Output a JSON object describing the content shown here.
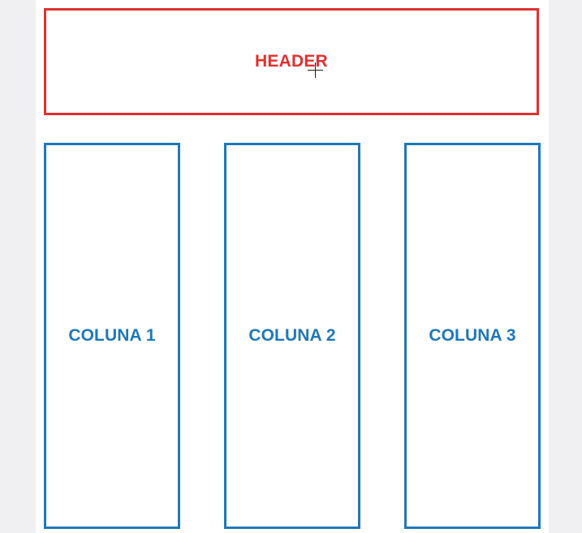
{
  "layout_diagram": {
    "header": {
      "label": "HEADER",
      "color": "#e0312f"
    },
    "columns": [
      {
        "label": "COLUNA 1",
        "color": "#1f78b8"
      },
      {
        "label": "COLUNA 2",
        "color": "#1f78b8"
      },
      {
        "label": "COLUNA 3",
        "color": "#1f78b8"
      }
    ],
    "background": {
      "page": "#f0eff1",
      "canvas": "#ffffff"
    },
    "cursor": {
      "icon": "crosshair-cursor-icon"
    }
  }
}
